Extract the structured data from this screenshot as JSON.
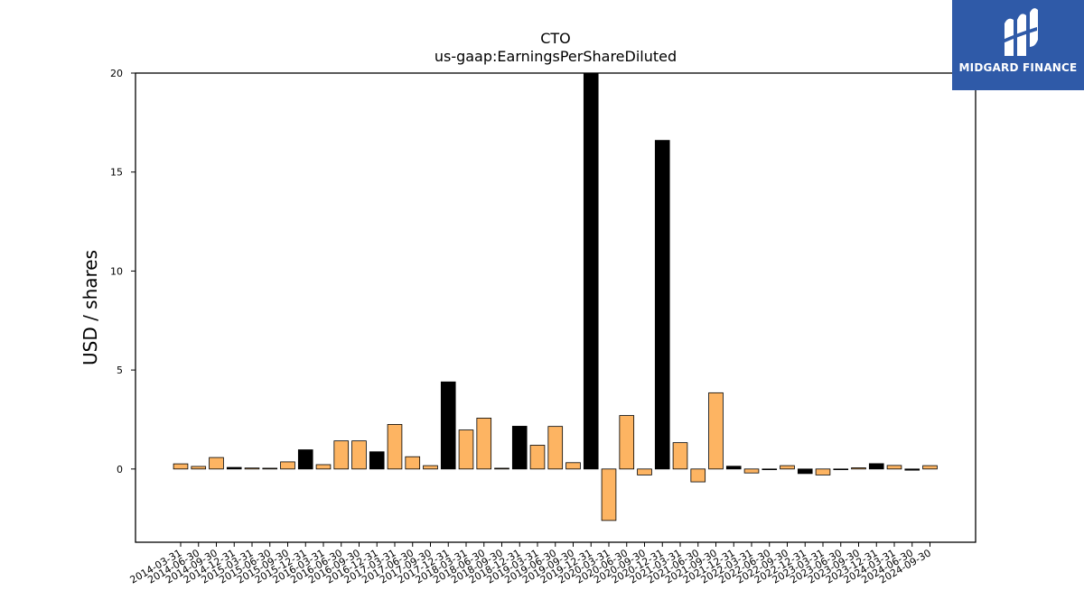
{
  "logo": {
    "text": "MIDGARD FINANCE",
    "bg_color": "#2f5aa8",
    "icon": "midgard-m-logo-icon"
  },
  "chart_data": {
    "type": "bar",
    "title": "CTO",
    "subtitle": "us-gaap:EarningsPerShareDiluted",
    "ylabel": "USD / shares",
    "xlabel": "",
    "ylim": [
      -3.7,
      20
    ],
    "yticks": [
      0,
      5,
      10,
      15,
      20
    ],
    "colors": {
      "quarter": "#fdb462",
      "annual": "#000000",
      "edge": "#000000"
    },
    "categories": [
      "2014-03-31",
      "2014-06-30",
      "2014-09-30",
      "2014-12-31",
      "2015-03-31",
      "2015-06-30",
      "2015-09-30",
      "2015-12-31",
      "2016-03-31",
      "2016-06-30",
      "2016-09-30",
      "2016-12-31",
      "2017-03-31",
      "2017-06-30",
      "2017-09-30",
      "2017-12-31",
      "2018-03-31",
      "2018-06-30",
      "2018-09-30",
      "2018-12-31",
      "2019-03-31",
      "2019-06-30",
      "2019-09-30",
      "2019-12-31",
      "2020-03-31",
      "2020-06-30",
      "2020-09-30",
      "2020-12-31",
      "2021-03-31",
      "2021-06-30",
      "2021-09-30",
      "2021-12-31",
      "2022-03-31",
      "2022-06-30",
      "2022-09-30",
      "2022-12-31",
      "2023-03-31",
      "2023-06-30",
      "2023-09-30",
      "2023-12-31",
      "2024-03-31",
      "2024-06-30",
      "2024-09-30"
    ],
    "values": [
      0.26,
      0.13,
      0.58,
      0.08,
      0.05,
      0.04,
      0.36,
      0.97,
      0.22,
      1.42,
      1.42,
      0.87,
      2.25,
      0.62,
      0.17,
      4.4,
      1.97,
      2.57,
      0.04,
      2.16,
      1.2,
      2.15,
      0.32,
      20.0,
      -2.6,
      2.7,
      -0.3,
      16.6,
      1.33,
      -0.65,
      3.85,
      0.14,
      -0.2,
      -0.03,
      0.17,
      -0.23,
      -0.3,
      -0.02,
      0.06,
      0.27,
      0.18,
      -0.06,
      0.17
    ],
    "annual": [
      false,
      false,
      false,
      true,
      false,
      false,
      false,
      true,
      false,
      false,
      false,
      true,
      false,
      false,
      false,
      true,
      false,
      false,
      false,
      true,
      false,
      false,
      false,
      true,
      false,
      false,
      false,
      true,
      false,
      false,
      false,
      true,
      false,
      false,
      false,
      true,
      false,
      false,
      false,
      true,
      false,
      true,
      false
    ]
  }
}
